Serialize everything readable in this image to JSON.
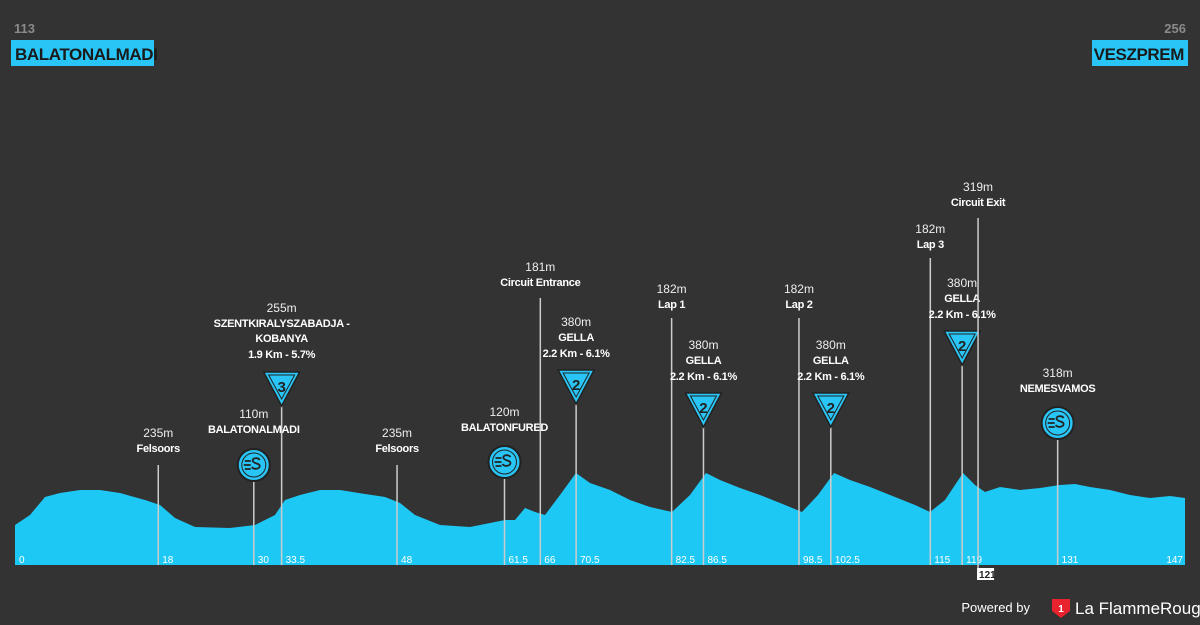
{
  "header": {
    "start": {
      "altitude": "113",
      "name": "BALATONALMADI"
    },
    "finish": {
      "altitude": "256",
      "name": "VESZPREM"
    }
  },
  "markers": [
    {
      "km": 0
    },
    {
      "km": 18,
      "altitude": "235m",
      "name": "Felsoors"
    },
    {
      "km": 30,
      "altitude": "110m",
      "name": "BALATONALMADI",
      "icon": "sprint"
    },
    {
      "km": 33.5,
      "altitude": "255m",
      "name": [
        "SZENTKIRALYSZABADJA -",
        "KOBANYA"
      ],
      "climb": "1.9 Km - 5.7%",
      "icon": "kom",
      "category": "3"
    },
    {
      "km": 48,
      "altitude": "235m",
      "name": "Felsoors"
    },
    {
      "km": 61.5,
      "altitude": "120m",
      "name": "BALATONFURED",
      "icon": "sprint"
    },
    {
      "km": 66,
      "altitude": "181m",
      "name": "Circuit Entrance"
    },
    {
      "km": 70.5,
      "altitude": "380m",
      "name": "GELLA",
      "climb": "2.2 Km - 6.1%",
      "icon": "kom",
      "category": "2"
    },
    {
      "km": 82.5,
      "altitude": "182m",
      "name": "Lap 1"
    },
    {
      "km": 86.5,
      "altitude": "380m",
      "name": "GELLA",
      "climb": "2.2 Km - 6.1%",
      "icon": "kom",
      "category": "2"
    },
    {
      "km": 98.5,
      "altitude": "182m",
      "name": "Lap 2"
    },
    {
      "km": 102.5,
      "altitude": "380m",
      "name": "GELLA",
      "climb": "2.2 Km - 6.1%",
      "icon": "kom",
      "category": "2"
    },
    {
      "km": 115,
      "altitude": "182m",
      "name": "Lap 3"
    },
    {
      "km": 119,
      "altitude": "380m",
      "name": "GELLA",
      "climb": "2.2 Km - 6.1%",
      "icon": "kom",
      "category": "2"
    },
    {
      "km": 121,
      "altitude": "319m",
      "name": "Circuit Exit"
    },
    {
      "km": 131,
      "altitude": "318m",
      "name": "NEMESVAMOS",
      "icon": "sprint"
    },
    {
      "km": 147
    }
  ],
  "footer": {
    "powered_by": "Powered by",
    "logo_number": "1",
    "brand": "La FlammeRouge"
  }
}
